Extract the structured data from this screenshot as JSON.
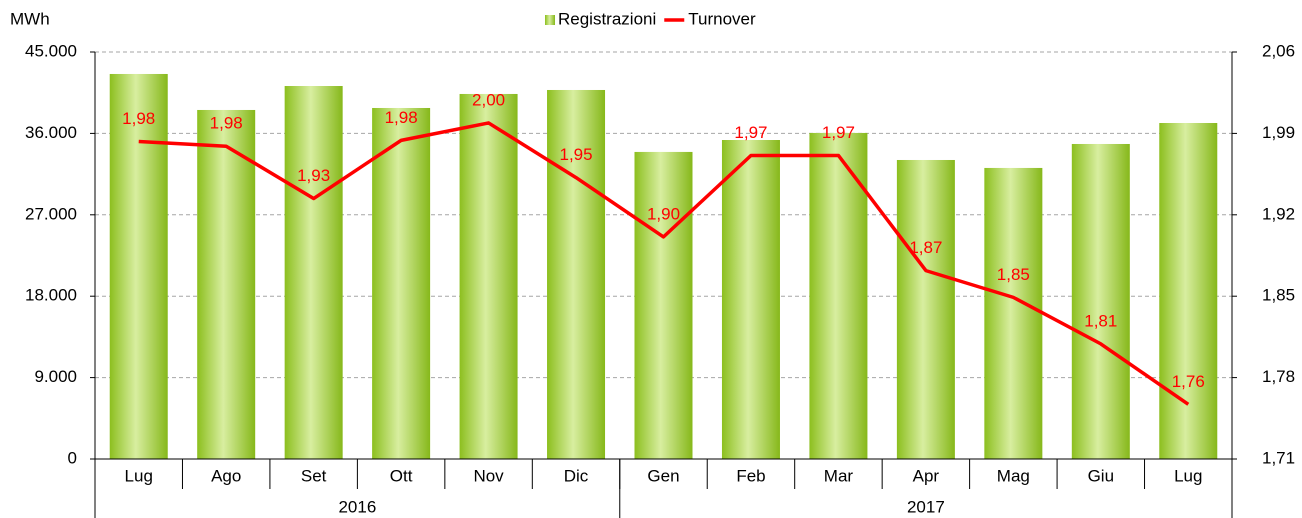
{
  "chart_data": {
    "type": "bar",
    "y_label": "MWh",
    "groups": [
      {
        "label": "2016",
        "categories": [
          "Lug",
          "Ago",
          "Set",
          "Ott",
          "Nov",
          "Dic"
        ]
      },
      {
        "label": "2017",
        "categories": [
          "Gen",
          "Feb",
          "Mar",
          "Apr",
          "Mag",
          "Giu",
          "Lug"
        ]
      }
    ],
    "series": [
      {
        "name": "Registrazioni",
        "type": "bar",
        "color": "#92c624",
        "values": [
          42570,
          38590,
          41240,
          38810,
          40360,
          40800,
          33950,
          35270,
          36050,
          33060,
          32180,
          34830,
          37150
        ]
      },
      {
        "name": "Turnover",
        "type": "line",
        "color": "#ff0000",
        "axis": "y2",
        "values": [
          1.983,
          1.979,
          1.934,
          1.984,
          1.999,
          1.952,
          1.901,
          1.971,
          1.971,
          1.872,
          1.849,
          1.809,
          1.757
        ],
        "value_labels": [
          "1,98",
          "1,98",
          "1,93",
          "1,98",
          "2,00",
          "1,95",
          "1,90",
          "1,97",
          "1,97",
          "1,87",
          "1,85",
          "1,81",
          "1,76"
        ]
      }
    ],
    "ylim": [
      0,
      45000
    ],
    "yticks": [
      0,
      {
        "value": 9000,
        "label": "9.000"
      },
      {
        "value": 18000,
        "label": "18.000"
      },
      {
        "value": 27000,
        "label": "27.000"
      },
      {
        "value": 36000,
        "label": "36.000"
      },
      {
        "value": 45000,
        "label": "45.000"
      }
    ],
    "y2lim": [
      1.71,
      2.06
    ],
    "y2ticks": [
      {
        "value": 1.71,
        "label": "1,71"
      },
      {
        "value": 1.78,
        "label": "1,78"
      },
      {
        "value": 1.85,
        "label": "1,85"
      },
      {
        "value": 1.92,
        "label": "1,92"
      },
      {
        "value": 1.99,
        "label": "1,99"
      },
      {
        "value": 2.06,
        "label": "2,06"
      }
    ],
    "grid": true,
    "legend": "top"
  }
}
